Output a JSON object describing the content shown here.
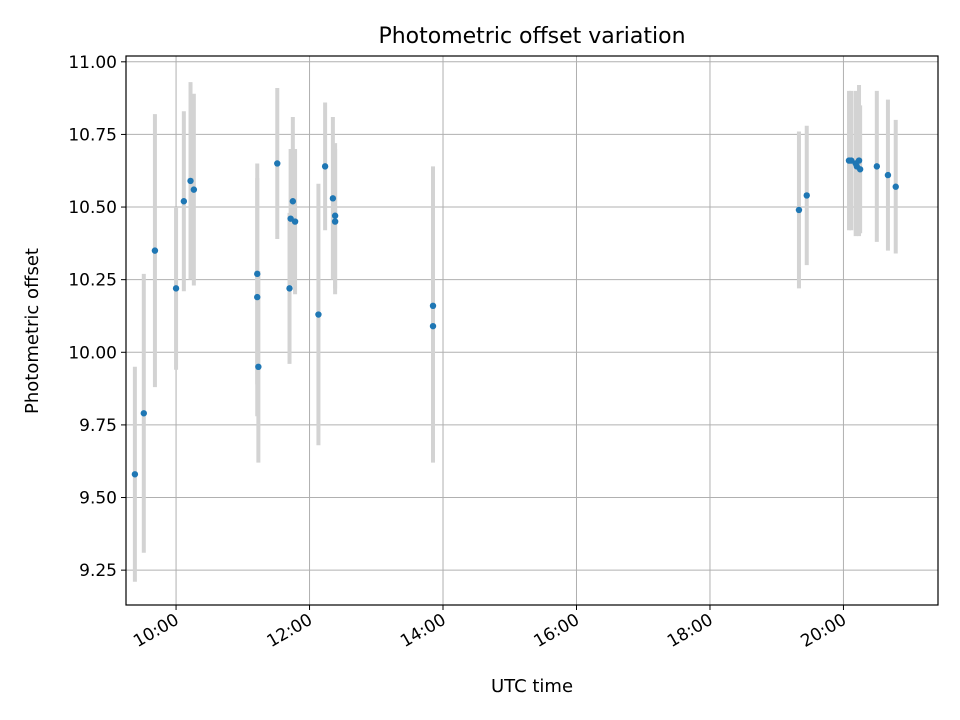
{
  "chart_data": {
    "type": "scatter",
    "title": "Photometric offset variation",
    "xlabel": "UTC time",
    "ylabel": "Photometric offset",
    "xlim": [
      "09:15",
      "21:25"
    ],
    "ylim": [
      9.13,
      11.02
    ],
    "x_ticks": [
      "10:00",
      "12:00",
      "14:00",
      "16:00",
      "18:00",
      "20:00"
    ],
    "y_ticks": [
      "9.25",
      "9.50",
      "9.75",
      "10.00",
      "10.25",
      "10.50",
      "10.75",
      "11.00"
    ],
    "grid": true,
    "colors": {
      "point": "#1f77b4",
      "errorbar": "#d3d3d3",
      "grid": "#b0b0b0"
    },
    "points": [
      {
        "x": "09:23",
        "y": 9.58,
        "err": 0.37
      },
      {
        "x": "09:31",
        "y": 9.79,
        "err": 0.48
      },
      {
        "x": "09:41",
        "y": 10.35,
        "err": 0.47
      },
      {
        "x": "10:00",
        "y": 10.22,
        "err": 0.28
      },
      {
        "x": "10:07",
        "y": 10.52,
        "err": 0.31
      },
      {
        "x": "10:13",
        "y": 10.59,
        "err": 0.34
      },
      {
        "x": "10:16",
        "y": 10.56,
        "err": 0.33
      },
      {
        "x": "11:13",
        "y": 10.27,
        "err": 0.38
      },
      {
        "x": "11:13",
        "y": 10.19,
        "err": 0.41
      },
      {
        "x": "11:14",
        "y": 9.95,
        "err": 0.33
      },
      {
        "x": "11:31",
        "y": 10.65,
        "err": 0.26
      },
      {
        "x": "11:42",
        "y": 10.22,
        "err": 0.26
      },
      {
        "x": "11:43",
        "y": 10.46,
        "err": 0.24
      },
      {
        "x": "11:45",
        "y": 10.52,
        "err": 0.29
      },
      {
        "x": "11:47",
        "y": 10.45,
        "err": 0.25
      },
      {
        "x": "12:08",
        "y": 10.13,
        "err": 0.45
      },
      {
        "x": "12:14",
        "y": 10.64,
        "err": 0.22
      },
      {
        "x": "12:21",
        "y": 10.53,
        "err": 0.28
      },
      {
        "x": "12:23",
        "y": 10.47,
        "err": 0.25
      },
      {
        "x": "12:23",
        "y": 10.45,
        "err": 0.25
      },
      {
        "x": "13:51",
        "y": 10.16,
        "err": 0.48
      },
      {
        "x": "13:51",
        "y": 10.09,
        "err": 0.47
      },
      {
        "x": "19:20",
        "y": 10.49,
        "err": 0.27
      },
      {
        "x": "19:27",
        "y": 10.54,
        "err": 0.24
      },
      {
        "x": "20:05",
        "y": 10.66,
        "err": 0.24
      },
      {
        "x": "20:07",
        "y": 10.66,
        "err": 0.24
      },
      {
        "x": "20:11",
        "y": 10.65,
        "err": 0.25
      },
      {
        "x": "20:12",
        "y": 10.64,
        "err": 0.23
      },
      {
        "x": "20:14",
        "y": 10.66,
        "err": 0.26
      },
      {
        "x": "20:15",
        "y": 10.63,
        "err": 0.22
      },
      {
        "x": "20:30",
        "y": 10.64,
        "err": 0.26
      },
      {
        "x": "20:40",
        "y": 10.61,
        "err": 0.26
      },
      {
        "x": "20:47",
        "y": 10.57,
        "err": 0.23
      }
    ]
  }
}
